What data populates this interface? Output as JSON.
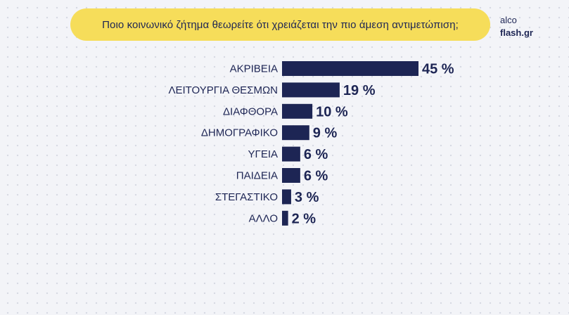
{
  "question": "Ποιο κοινωνικό ζήτημα θεωρείτε ότι χρειάζεται την πιο άμεση αντιμετώπιση;",
  "brand": {
    "line1": "alco",
    "line2": "flash.gr"
  },
  "colors": {
    "bar": "#1d2554",
    "pill": "#f6dd5a",
    "text": "#1d2554"
  },
  "chart_data": {
    "type": "bar",
    "orientation": "horizontal",
    "categories": [
      "ΑΚΡΙΒΕΙΑ",
      "ΛΕΙΤΟΥΡΓΙΑ ΘΕΣΜΩΝ",
      "ΔΙΑΦΘΟΡΑ",
      "ΔΗΜΟΓΡΑΦΙΚΟ",
      "ΥΓΕΙΑ",
      "ΠΑΙΔΕΙΑ",
      "ΣΤΕΓΑΣΤΙΚΟ",
      "ΑΛΛΟ"
    ],
    "values": [
      45,
      19,
      10,
      9,
      6,
      6,
      3,
      2
    ],
    "value_labels": [
      "45 %",
      "19 %",
      "10 %",
      "9 %",
      "6 %",
      "6 %",
      "3 %",
      "2 %"
    ],
    "unit": "%"
  }
}
